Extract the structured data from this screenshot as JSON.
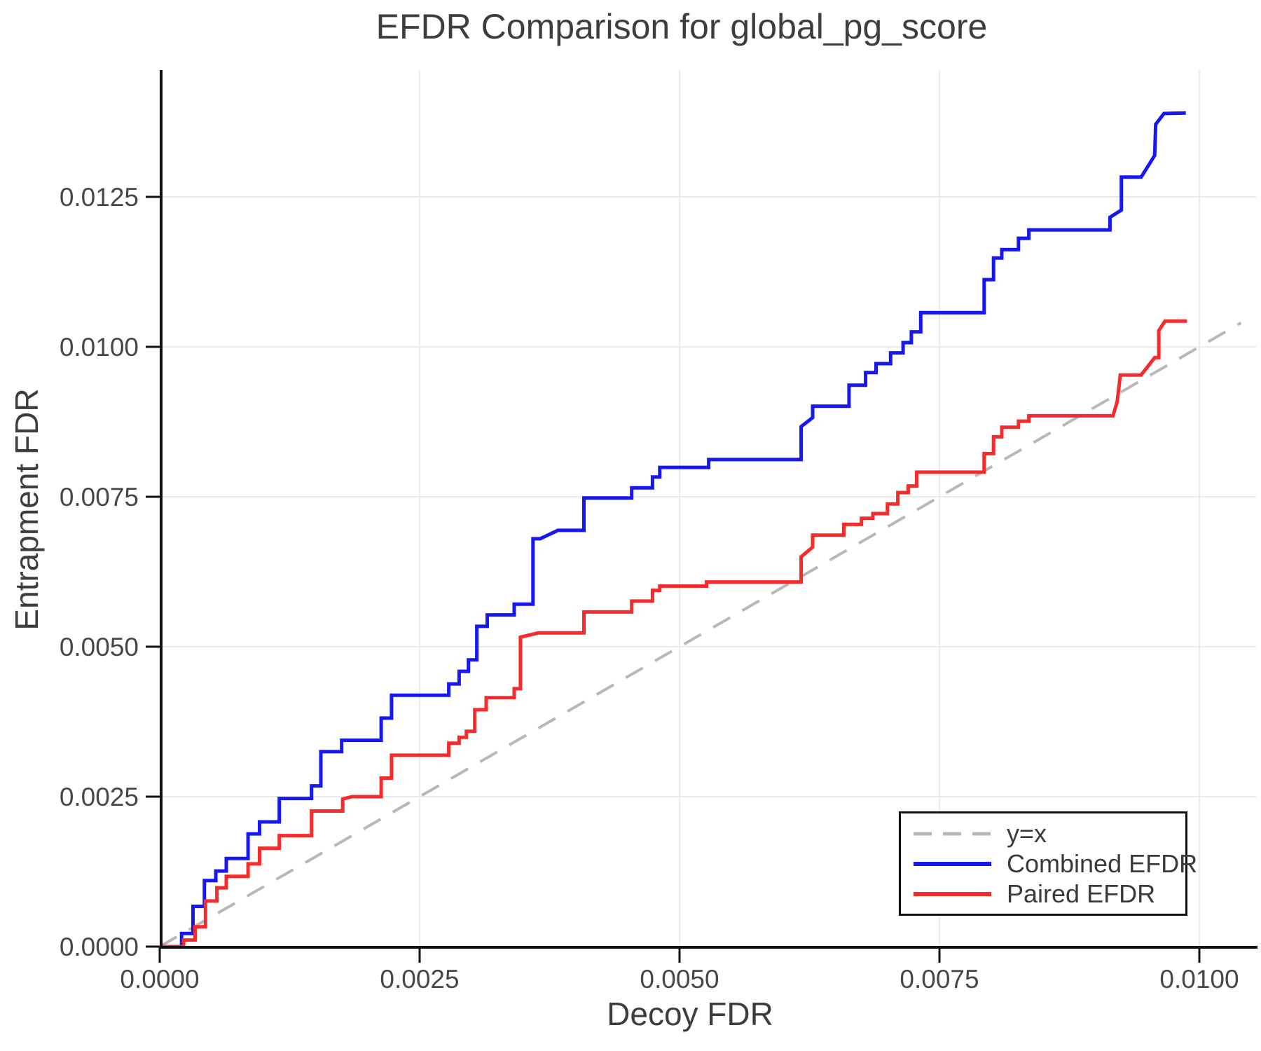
{
  "chart_data": {
    "type": "line",
    "title": "EFDR Comparison for global_pg_score",
    "xlabel": "Decoy FDR",
    "ylabel": "Entrapment FDR",
    "xlim": [
      0,
      0.01055
    ],
    "ylim": [
      0,
      0.0146
    ],
    "grid": true,
    "legend_position": "bottom-right",
    "x_ticks": {
      "values": [
        0,
        0.0025,
        0.005,
        0.0075,
        0.01
      ],
      "labels": [
        "0.0000",
        "0.0025",
        "0.0050",
        "0.0075",
        "0.0100"
      ]
    },
    "y_ticks": {
      "values": [
        0,
        0.0025,
        0.005,
        0.0075,
        0.01,
        0.0125
      ],
      "labels": [
        "0.0000",
        "0.0025",
        "0.0050",
        "0.0075",
        "0.0100",
        "0.0125"
      ]
    },
    "colors": {
      "grid": "#ebebeb",
      "spine": "#111111",
      "tick_text": "#474747",
      "title_text": "#3d3d3d"
    },
    "series": [
      {
        "name": "y=x",
        "style": "dashed",
        "color": "#b8b8b8",
        "width": 4,
        "points": [
          [
            0,
            0
          ],
          [
            0.0104,
            0.0104
          ]
        ]
      },
      {
        "name": "Combined EFDR",
        "style": "solid",
        "color": "#1717f0",
        "width": 5,
        "points": [
          [
            0,
            0
          ],
          [
            0.00021,
            0
          ],
          [
            0.00021,
            0.00022
          ],
          [
            0.00032,
            0.00022
          ],
          [
            0.00032,
            0.00067
          ],
          [
            0.00043,
            0.00067
          ],
          [
            0.00043,
            0.0011
          ],
          [
            0.00054,
            0.0011
          ],
          [
            0.00054,
            0.00126
          ],
          [
            0.00064,
            0.00126
          ],
          [
            0.00064,
            0.00147
          ],
          [
            0.00085,
            0.00147
          ],
          [
            0.00085,
            0.00188
          ],
          [
            0.00096,
            0.00188
          ],
          [
            0.00096,
            0.00208
          ],
          [
            0.00115,
            0.00208
          ],
          [
            0.00115,
            0.00247
          ],
          [
            0.00146,
            0.00247
          ],
          [
            0.00146,
            0.00268
          ],
          [
            0.00155,
            0.00268
          ],
          [
            0.00155,
            0.00325
          ],
          [
            0.00175,
            0.00325
          ],
          [
            0.00175,
            0.00344
          ],
          [
            0.00213,
            0.00344
          ],
          [
            0.00213,
            0.00381
          ],
          [
            0.00223,
            0.00381
          ],
          [
            0.00223,
            0.00419
          ],
          [
            0.00278,
            0.00419
          ],
          [
            0.00278,
            0.00438
          ],
          [
            0.00288,
            0.00438
          ],
          [
            0.00288,
            0.00459
          ],
          [
            0.00297,
            0.00459
          ],
          [
            0.00297,
            0.00478
          ],
          [
            0.00305,
            0.00478
          ],
          [
            0.00305,
            0.00534
          ],
          [
            0.00315,
            0.00534
          ],
          [
            0.00315,
            0.00553
          ],
          [
            0.00341,
            0.00553
          ],
          [
            0.00341,
            0.00571
          ],
          [
            0.00359,
            0.00571
          ],
          [
            0.00359,
            0.0068
          ],
          [
            0.00366,
            0.0068
          ],
          [
            0.00383,
            0.00694
          ],
          [
            0.00408,
            0.00694
          ],
          [
            0.00408,
            0.00748
          ],
          [
            0.00454,
            0.00748
          ],
          [
            0.00454,
            0.00765
          ],
          [
            0.00474,
            0.00765
          ],
          [
            0.00474,
            0.00783
          ],
          [
            0.00481,
            0.00783
          ],
          [
            0.00481,
            0.00799
          ],
          [
            0.00528,
            0.00799
          ],
          [
            0.00528,
            0.00812
          ],
          [
            0.00617,
            0.00812
          ],
          [
            0.00617,
            0.00867
          ],
          [
            0.00628,
            0.00882
          ],
          [
            0.00628,
            0.00901
          ],
          [
            0.00663,
            0.00901
          ],
          [
            0.00663,
            0.00936
          ],
          [
            0.00679,
            0.00936
          ],
          [
            0.00679,
            0.00957
          ],
          [
            0.00689,
            0.00957
          ],
          [
            0.00689,
            0.00972
          ],
          [
            0.00703,
            0.00972
          ],
          [
            0.00703,
            0.0099
          ],
          [
            0.00715,
            0.0099
          ],
          [
            0.00715,
            0.01007
          ],
          [
            0.00723,
            0.01007
          ],
          [
            0.00723,
            0.01025
          ],
          [
            0.00732,
            0.01025
          ],
          [
            0.00732,
            0.01057
          ],
          [
            0.00793,
            0.01057
          ],
          [
            0.00793,
            0.01112
          ],
          [
            0.00802,
            0.01112
          ],
          [
            0.00802,
            0.01148
          ],
          [
            0.0081,
            0.01148
          ],
          [
            0.0081,
            0.01162
          ],
          [
            0.00826,
            0.01162
          ],
          [
            0.00826,
            0.01181
          ],
          [
            0.00836,
            0.01181
          ],
          [
            0.00836,
            0.01195
          ],
          [
            0.00914,
            0.01195
          ],
          [
            0.00914,
            0.01216
          ],
          [
            0.00925,
            0.01228
          ],
          [
            0.00925,
            0.01283
          ],
          [
            0.00944,
            0.01283
          ],
          [
            0.00957,
            0.01319
          ],
          [
            0.00958,
            0.01371
          ],
          [
            0.00966,
            0.01389
          ],
          [
            0.00987,
            0.0139
          ]
        ]
      },
      {
        "name": "Paired EFDR",
        "style": "solid",
        "color": "#f62b2b",
        "width": 5,
        "points": [
          [
            0,
            0
          ],
          [
            0.00023,
            0
          ],
          [
            0.00023,
            0.00011
          ],
          [
            0.00034,
            0.00011
          ],
          [
            0.00034,
            0.00033
          ],
          [
            0.00044,
            0.00033
          ],
          [
            0.00044,
            0.00076
          ],
          [
            0.00055,
            0.00076
          ],
          [
            0.00055,
            0.00098
          ],
          [
            0.00064,
            0.00098
          ],
          [
            0.00064,
            0.00117
          ],
          [
            0.00085,
            0.00117
          ],
          [
            0.00085,
            0.00138
          ],
          [
            0.00096,
            0.00138
          ],
          [
            0.00096,
            0.00164
          ],
          [
            0.00115,
            0.00164
          ],
          [
            0.00115,
            0.00185
          ],
          [
            0.00146,
            0.00185
          ],
          [
            0.00146,
            0.00226
          ],
          [
            0.00176,
            0.00226
          ],
          [
            0.00176,
            0.00246
          ],
          [
            0.00185,
            0.0025
          ],
          [
            0.00213,
            0.0025
          ],
          [
            0.00213,
            0.00281
          ],
          [
            0.00223,
            0.00281
          ],
          [
            0.00223,
            0.00319
          ],
          [
            0.00278,
            0.00319
          ],
          [
            0.00278,
            0.00339
          ],
          [
            0.00288,
            0.00339
          ],
          [
            0.00288,
            0.00349
          ],
          [
            0.00295,
            0.00349
          ],
          [
            0.00295,
            0.00359
          ],
          [
            0.00303,
            0.00359
          ],
          [
            0.00303,
            0.00395
          ],
          [
            0.00314,
            0.00395
          ],
          [
            0.00314,
            0.00415
          ],
          [
            0.00341,
            0.00415
          ],
          [
            0.00341,
            0.0043
          ],
          [
            0.00347,
            0.0043
          ],
          [
            0.00347,
            0.00516
          ],
          [
            0.00364,
            0.00523
          ],
          [
            0.00408,
            0.00523
          ],
          [
            0.00408,
            0.00558
          ],
          [
            0.00454,
            0.00558
          ],
          [
            0.00454,
            0.00576
          ],
          [
            0.00474,
            0.00576
          ],
          [
            0.00474,
            0.00594
          ],
          [
            0.00481,
            0.00594
          ],
          [
            0.00481,
            0.00601
          ],
          [
            0.00526,
            0.00601
          ],
          [
            0.00526,
            0.00608
          ],
          [
            0.00617,
            0.00608
          ],
          [
            0.00617,
            0.0065
          ],
          [
            0.00628,
            0.00666
          ],
          [
            0.00628,
            0.00686
          ],
          [
            0.00658,
            0.00686
          ],
          [
            0.00658,
            0.00704
          ],
          [
            0.00675,
            0.00704
          ],
          [
            0.00675,
            0.00714
          ],
          [
            0.00686,
            0.00714
          ],
          [
            0.00686,
            0.00722
          ],
          [
            0.007,
            0.00722
          ],
          [
            0.007,
            0.00738
          ],
          [
            0.0071,
            0.00738
          ],
          [
            0.0071,
            0.00757
          ],
          [
            0.0072,
            0.00757
          ],
          [
            0.0072,
            0.00768
          ],
          [
            0.00728,
            0.00768
          ],
          [
            0.00728,
            0.00791
          ],
          [
            0.00793,
            0.00791
          ],
          [
            0.00793,
            0.00822
          ],
          [
            0.00802,
            0.00822
          ],
          [
            0.00802,
            0.0085
          ],
          [
            0.0081,
            0.0085
          ],
          [
            0.0081,
            0.00866
          ],
          [
            0.00826,
            0.00866
          ],
          [
            0.00826,
            0.00876
          ],
          [
            0.00836,
            0.00876
          ],
          [
            0.00836,
            0.00885
          ],
          [
            0.00917,
            0.00885
          ],
          [
            0.00921,
            0.00909
          ],
          [
            0.00924,
            0.00953
          ],
          [
            0.00944,
            0.00953
          ],
          [
            0.00953,
            0.00973
          ],
          [
            0.00957,
            0.00982
          ],
          [
            0.00961,
            0.00982
          ],
          [
            0.00961,
            0.01027
          ],
          [
            0.00967,
            0.01043
          ],
          [
            0.00988,
            0.01043
          ]
        ]
      }
    ]
  }
}
